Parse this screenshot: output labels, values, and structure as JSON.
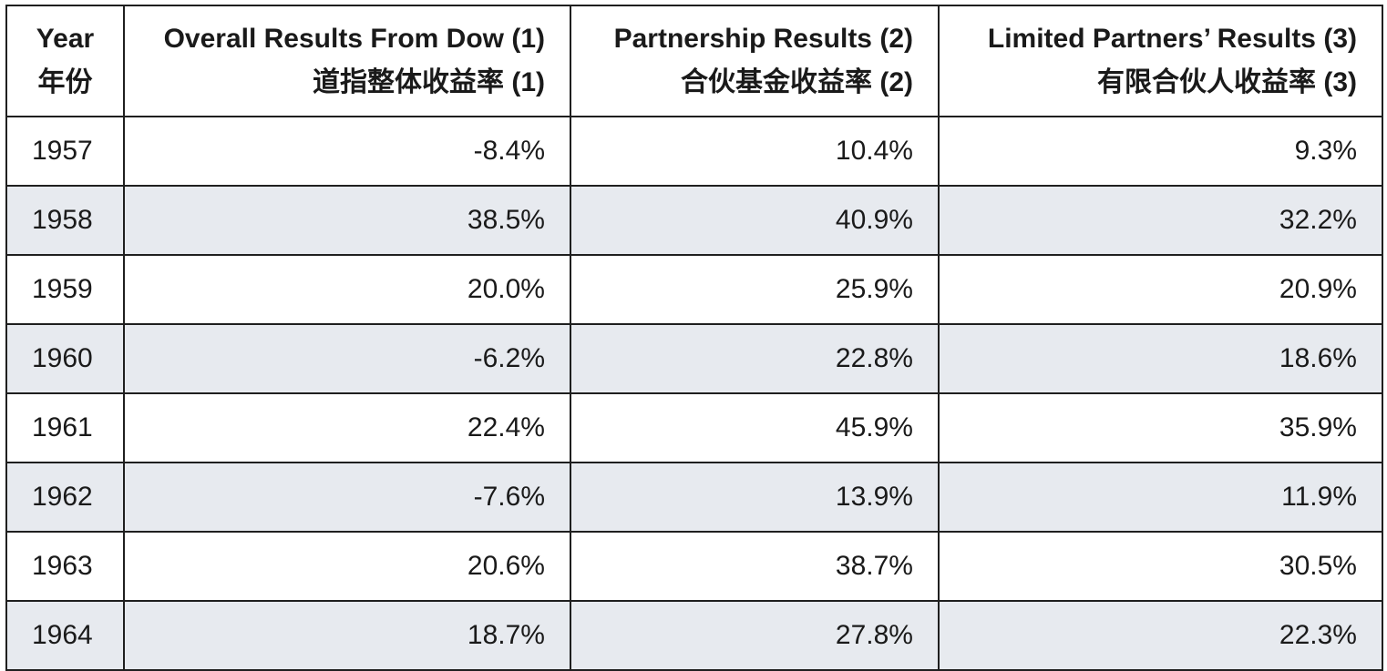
{
  "table": {
    "headers": [
      {
        "en": "Year",
        "zh": "年份"
      },
      {
        "en": "Overall Results From Dow (1)",
        "zh": "道指整体收益率 (1)"
      },
      {
        "en": "Partnership Results (2)",
        "zh": "合伙基金收益率 (2)"
      },
      {
        "en": "Limited Partners’ Results (3)",
        "zh": "有限合伙人收益率 (3)"
      }
    ],
    "rows": [
      {
        "year": "1957",
        "dow": "-8.4%",
        "partnership": "10.4%",
        "limited": "9.3%"
      },
      {
        "year": "1958",
        "dow": "38.5%",
        "partnership": "40.9%",
        "limited": "32.2%"
      },
      {
        "year": "1959",
        "dow": "20.0%",
        "partnership": "25.9%",
        "limited": "20.9%"
      },
      {
        "year": "1960",
        "dow": "-6.2%",
        "partnership": "22.8%",
        "limited": "18.6%"
      },
      {
        "year": "1961",
        "dow": "22.4%",
        "partnership": "45.9%",
        "limited": "35.9%"
      },
      {
        "year": "1962",
        "dow": "-7.6%",
        "partnership": "13.9%",
        "limited": "11.9%"
      },
      {
        "year": "1963",
        "dow": "20.6%",
        "partnership": "38.7%",
        "limited": "30.5%"
      },
      {
        "year": "1964",
        "dow": "18.7%",
        "partnership": "27.8%",
        "limited": "22.3%"
      }
    ]
  },
  "colors": {
    "border": "#1f1f1f",
    "stripe": "#e7eaef",
    "text": "#1a1a1a"
  }
}
